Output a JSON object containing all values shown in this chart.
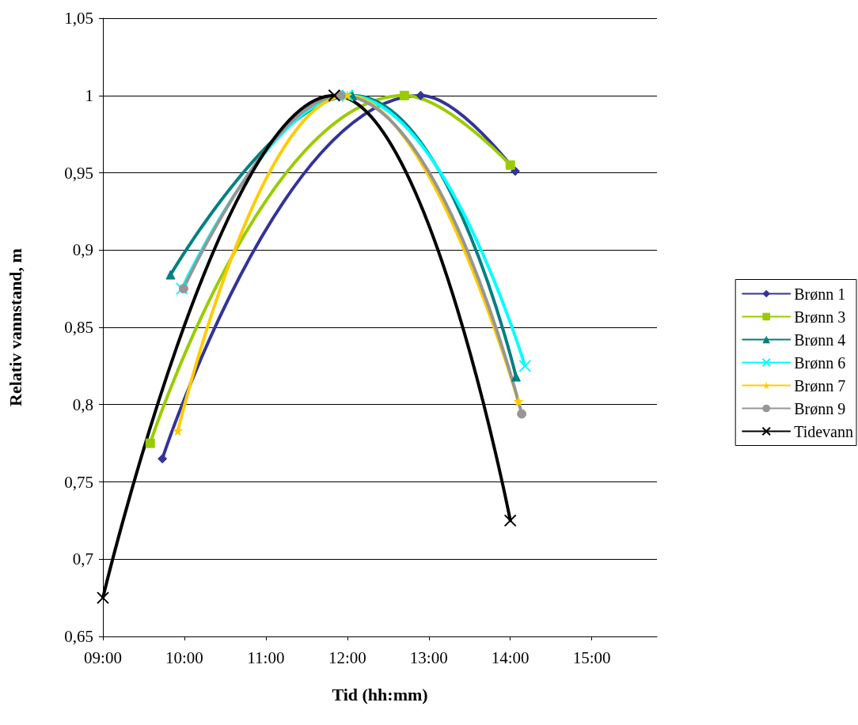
{
  "chart_data": {
    "type": "line",
    "xlabel": "Tid (hh:mm)",
    "ylabel": "Relativ vannstand, m",
    "xlim": [
      9,
      15.8
    ],
    "xticks": [
      {
        "value": 9,
        "label": "09:00"
      },
      {
        "value": 10,
        "label": "10:00"
      },
      {
        "value": 11,
        "label": "11:00"
      },
      {
        "value": 12,
        "label": "12:00"
      },
      {
        "value": 13,
        "label": "13:00"
      },
      {
        "value": 14,
        "label": "14:00"
      },
      {
        "value": 15,
        "label": "15:00"
      }
    ],
    "ylim": [
      0.65,
      1.05
    ],
    "yticks": [
      {
        "value": 0.65,
        "label": "0,65"
      },
      {
        "value": 0.7,
        "label": "0,7"
      },
      {
        "value": 0.75,
        "label": "0,75"
      },
      {
        "value": 0.8,
        "label": "0,8"
      },
      {
        "value": 0.85,
        "label": "0,85"
      },
      {
        "value": 0.9,
        "label": "0,9"
      },
      {
        "value": 0.95,
        "label": "0,95"
      },
      1,
      {
        "value": 1.05,
        "label": "1,05"
      }
    ],
    "grid": "y",
    "legend": "right",
    "line_style": "solid",
    "series": [
      {
        "name": "Brønn 1",
        "color": "#333399",
        "marker": "diamond",
        "x": [
          9.73,
          12.9,
          14.06
        ],
        "values": [
          0.765,
          1.0,
          0.951
        ]
      },
      {
        "name": "Brønn 3",
        "color": "#99cc00",
        "marker": "square",
        "x": [
          9.58,
          12.7,
          14.0
        ],
        "values": [
          0.775,
          1.0,
          0.955
        ]
      },
      {
        "name": "Brønn 4",
        "color": "#008080",
        "marker": "triangle",
        "x": [
          9.83,
          12.06,
          14.07
        ],
        "values": [
          0.884,
          1.0,
          0.818
        ]
      },
      {
        "name": "Brønn 6",
        "color": "#00ffff",
        "marker": "cross",
        "x": [
          9.97,
          12.0,
          14.18
        ],
        "values": [
          0.875,
          1.0,
          0.825
        ]
      },
      {
        "name": "Brønn 7",
        "color": "#ffcc00",
        "marker": "star",
        "x": [
          9.92,
          12.0,
          14.1
        ],
        "values": [
          0.783,
          1.0,
          0.802
        ]
      },
      {
        "name": "Brønn 9",
        "color": "#969696",
        "marker": "circle",
        "x": [
          9.99,
          11.92,
          14.14
        ],
        "values": [
          0.875,
          1.0,
          0.794
        ]
      },
      {
        "name": "Tidevann",
        "color": "#000000",
        "marker": "cross",
        "x": [
          9.0,
          11.84,
          14.0
        ],
        "values": [
          0.675,
          1.0,
          0.725
        ]
      }
    ]
  }
}
